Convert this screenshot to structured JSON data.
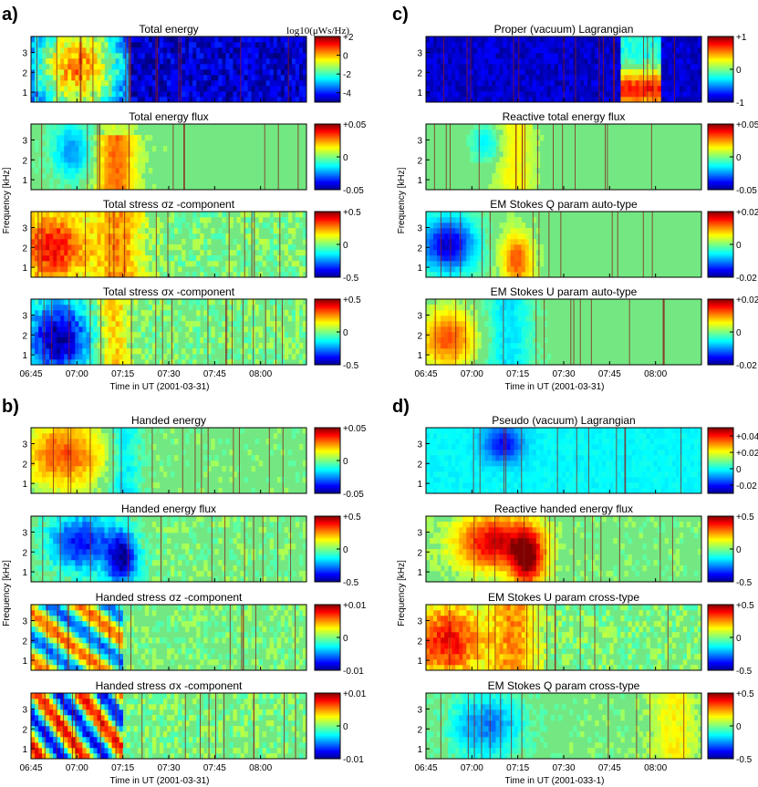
{
  "figure": {
    "panel_letters": [
      "a)",
      "b)",
      "c)",
      "d)"
    ],
    "x_axis_label": "Time in UT (2001-03-31)",
    "x_axis_label_d": "Time in UT (2001-033-1)",
    "y_axis_label": "Frequency [kHz]",
    "x_ticks": [
      "06:45",
      "07:00",
      "07:15",
      "07:30",
      "07:45",
      "08:00"
    ],
    "y_ticks": [
      "1",
      "2",
      "3"
    ],
    "colormap": "jet",
    "colors": {
      "low": "#0000c8",
      "mid": "#73ff83",
      "high": "#8a0000",
      "background_green": "#73e882"
    }
  },
  "chart_data": [
    {
      "type": "heatmap",
      "panel": "a",
      "index": 0,
      "title": "Total energy",
      "colorbar_unit": "log10(μWs/Hz)",
      "colorbar_ticks": [
        "+2",
        "0",
        "-2",
        "-4"
      ],
      "clim": [
        -5,
        2
      ],
      "pattern": "energy",
      "x_range": [
        "06:45",
        "08:15"
      ],
      "y_range": [
        0.5,
        3.8
      ]
    },
    {
      "type": "heatmap",
      "panel": "a",
      "index": 1,
      "title": "Total energy flux",
      "colorbar_ticks": [
        "+0.05",
        "0",
        "-0.05"
      ],
      "clim": [
        -0.05,
        0.05
      ],
      "pattern": "flux_pos"
    },
    {
      "type": "heatmap",
      "panel": "a",
      "index": 2,
      "title": "Total stress σz -component",
      "colorbar_ticks": [
        "+0.5",
        "0",
        "-0.5"
      ],
      "clim": [
        -0.5,
        0.5
      ],
      "pattern": "stress_pos"
    },
    {
      "type": "heatmap",
      "panel": "a",
      "index": 3,
      "title": "Total stress σx -component",
      "colorbar_ticks": [
        "+0.5",
        "0",
        "-0.5"
      ],
      "clim": [
        -0.5,
        0.5
      ],
      "pattern": "stress_neg"
    },
    {
      "type": "heatmap",
      "panel": "b",
      "index": 0,
      "title": "Handed energy",
      "colorbar_ticks": [
        "+0.05",
        "0",
        "-0.05"
      ],
      "clim": [
        -0.05,
        0.05
      ],
      "pattern": "handed_energy"
    },
    {
      "type": "heatmap",
      "panel": "b",
      "index": 1,
      "title": "Handed energy flux",
      "colorbar_ticks": [
        "+0.5",
        "0",
        "-0.5"
      ],
      "clim": [
        -0.5,
        0.5
      ],
      "pattern": "flux_neg"
    },
    {
      "type": "heatmap",
      "panel": "b",
      "index": 2,
      "title": "Handed stress σz -component",
      "colorbar_ticks": [
        "+0.01",
        "0",
        "-0.01"
      ],
      "clim": [
        -0.01,
        0.01
      ],
      "pattern": "mixed_weak"
    },
    {
      "type": "heatmap",
      "panel": "b",
      "index": 3,
      "title": "Handed stress σx -component",
      "colorbar_ticks": [
        "+0.01",
        "0",
        "-0.01"
      ],
      "clim": [
        -0.01,
        0.01
      ],
      "pattern": "mixed_strong"
    },
    {
      "type": "heatmap",
      "panel": "c",
      "index": 0,
      "title": "Proper (vacuum) Lagrangian",
      "colorbar_ticks": [
        "+1",
        "0",
        "-1"
      ],
      "clim": [
        -1,
        1
      ],
      "pattern": "lagrangian"
    },
    {
      "type": "heatmap",
      "panel": "c",
      "index": 1,
      "title": "Reactive total energy flux",
      "colorbar_ticks": [
        "+0.05",
        "0",
        "-0.05"
      ],
      "clim": [
        -0.05,
        0.05
      ],
      "pattern": "reactive_weak"
    },
    {
      "type": "heatmap",
      "panel": "c",
      "index": 2,
      "title": "EM Stokes Q param auto-type",
      "colorbar_ticks": [
        "+0.02",
        "0",
        "-0.02"
      ],
      "clim": [
        -0.02,
        0.02
      ],
      "pattern": "stokes_q"
    },
    {
      "type": "heatmap",
      "panel": "c",
      "index": 3,
      "title": "EM Stokes U param auto-type",
      "colorbar_ticks": [
        "+0.02",
        "0",
        "-0.02"
      ],
      "clim": [
        -0.02,
        0.02
      ],
      "pattern": "stokes_u"
    },
    {
      "type": "heatmap",
      "panel": "d",
      "index": 0,
      "title": "Pseudo (vacuum) Lagrangian",
      "colorbar_ticks": [
        "+0.04",
        "+0.02",
        "0",
        "-0.02"
      ],
      "clim": [
        -0.03,
        0.05
      ],
      "pattern": "pseudo"
    },
    {
      "type": "heatmap",
      "panel": "d",
      "index": 1,
      "title": "Reactive handed energy flux",
      "colorbar_ticks": [
        "+0.5",
        "0",
        "-0.5"
      ],
      "clim": [
        -0.5,
        0.5
      ],
      "pattern": "reactive_strong"
    },
    {
      "type": "heatmap",
      "panel": "d",
      "index": 2,
      "title": "EM Stokes U param cross-type",
      "colorbar_ticks": [
        "+0.5",
        "0",
        "-0.5"
      ],
      "clim": [
        -0.5,
        0.5
      ],
      "pattern": "stress_pos"
    },
    {
      "type": "heatmap",
      "panel": "d",
      "index": 3,
      "title": "EM Stokes Q param cross-type",
      "colorbar_ticks": [
        "+0.5",
        "0",
        "-0.5"
      ],
      "clim": [
        -0.5,
        0.5
      ],
      "pattern": "cross_q"
    }
  ]
}
